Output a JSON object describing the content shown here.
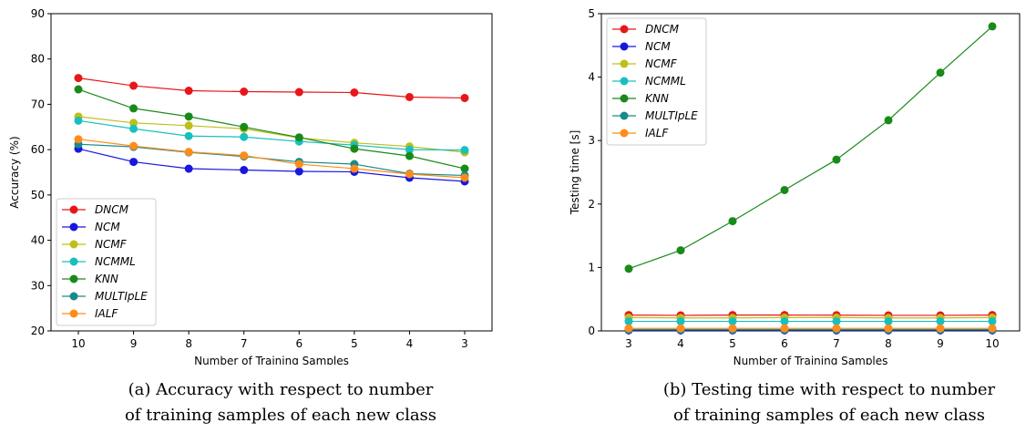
{
  "captions": [
    {
      "line1": "(a) Accuracy with respect to number",
      "line2": "of training samples of each new class"
    },
    {
      "line1": "(b) Testing time with respect to number",
      "line2": "of training samples of each new class"
    }
  ],
  "colors": {
    "DNCM": "#e8161b",
    "NCM": "#1717e0",
    "NCMF": "#bfbf19",
    "NCMML": "#19bfbf",
    "KNN": "#198a19",
    "MULTIpLE": "#198a8a",
    "IALF": "#ff8c19"
  },
  "chart_data": [
    {
      "type": "line",
      "title": "",
      "xlabel": "Number of Training Samples",
      "ylabel": "Accuracy (%)",
      "x": [
        10,
        9,
        8,
        7,
        6,
        5,
        4,
        3
      ],
      "x_tick_labels": [
        "10",
        "9",
        "8",
        "7",
        "6",
        "5",
        "4",
        "3"
      ],
      "ylim": [
        20,
        90
      ],
      "y_ticks": [
        "20",
        "30",
        "40",
        "50",
        "60",
        "70",
        "80",
        "90"
      ],
      "legend_position": "lower-left",
      "grid": false,
      "series": [
        {
          "name": "DNCM",
          "values": [
            75.8,
            74.1,
            73.0,
            72.8,
            72.7,
            72.6,
            71.6,
            71.4
          ]
        },
        {
          "name": "NCM",
          "values": [
            60.2,
            57.3,
            55.8,
            55.5,
            55.2,
            55.1,
            53.8,
            53.0
          ]
        },
        {
          "name": "NCMF",
          "values": [
            67.3,
            65.9,
            65.3,
            64.6,
            62.6,
            61.5,
            60.7,
            59.4
          ]
        },
        {
          "name": "NCMML",
          "values": [
            66.4,
            64.6,
            63.0,
            62.8,
            61.8,
            61.0,
            60.0,
            59.9
          ]
        },
        {
          "name": "KNN",
          "values": [
            73.3,
            69.1,
            67.3,
            65.0,
            62.7,
            60.2,
            58.6,
            55.8
          ]
        },
        {
          "name": "MULTIpLE",
          "values": [
            61.2,
            60.6,
            59.4,
            58.5,
            57.3,
            56.8,
            54.7,
            54.3
          ]
        },
        {
          "name": "IALF",
          "values": [
            62.3,
            60.8,
            59.5,
            58.7,
            56.8,
            55.8,
            54.6,
            53.8
          ]
        }
      ]
    },
    {
      "type": "line",
      "title": "",
      "xlabel": "Number of Training Samples",
      "ylabel": "Testing time [s]",
      "x": [
        3,
        4,
        5,
        6,
        7,
        8,
        9,
        10
      ],
      "x_tick_labels": [
        "3",
        "4",
        "5",
        "6",
        "7",
        "8",
        "9",
        "10"
      ],
      "ylim": [
        0,
        5
      ],
      "y_ticks": [
        "0",
        "1",
        "2",
        "3",
        "4",
        "5"
      ],
      "legend_position": "upper-left",
      "grid": false,
      "series": [
        {
          "name": "DNCM",
          "values": [
            0.25,
            0.245,
            0.25,
            0.25,
            0.248,
            0.245,
            0.245,
            0.25
          ]
        },
        {
          "name": "NCM",
          "values": [
            0.01,
            0.01,
            0.01,
            0.01,
            0.01,
            0.01,
            0.01,
            0.01
          ]
        },
        {
          "name": "NCMF",
          "values": [
            0.21,
            0.205,
            0.205,
            0.21,
            0.21,
            0.205,
            0.205,
            0.21
          ]
        },
        {
          "name": "NCMML",
          "values": [
            0.15,
            0.15,
            0.15,
            0.15,
            0.15,
            0.15,
            0.15,
            0.15
          ]
        },
        {
          "name": "KNN",
          "values": [
            0.98,
            1.27,
            1.73,
            2.22,
            2.7,
            3.32,
            4.07,
            4.8
          ]
        },
        {
          "name": "MULTIpLE",
          "values": [
            0.02,
            0.02,
            0.02,
            0.02,
            0.02,
            0.02,
            0.02,
            0.02
          ]
        },
        {
          "name": "IALF",
          "values": [
            0.04,
            0.04,
            0.04,
            0.04,
            0.04,
            0.04,
            0.04,
            0.04
          ]
        }
      ]
    }
  ]
}
